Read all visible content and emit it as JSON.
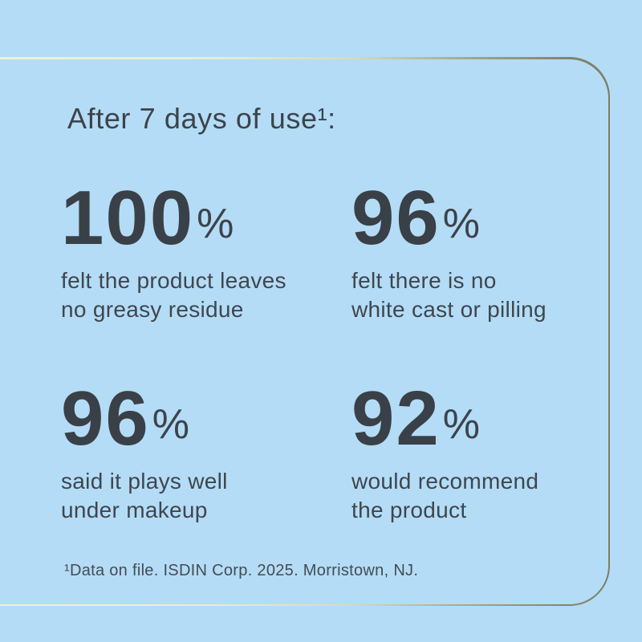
{
  "page": {
    "background_color": "#b4dcf6",
    "text_color": "#3d434b",
    "stat_number_color": "#3a4047",
    "border_gradient_left": "#f0f2dc",
    "border_gradient_right": "#7d7d66"
  },
  "heading": "After 7 days of use¹:",
  "stats": [
    {
      "value": "100",
      "percent_sign": "%",
      "caption": "felt the product leaves\nno greasy residue"
    },
    {
      "value": "96",
      "percent_sign": "%",
      "caption": "felt there is no\nwhite cast or pilling"
    },
    {
      "value": "96",
      "percent_sign": "%",
      "caption": "said it plays well\nunder makeup"
    },
    {
      "value": "92",
      "percent_sign": "%",
      "caption": "would recommend\nthe product"
    }
  ],
  "footnote": "¹Data on file. ISDIN Corp. 2025. Morristown, NJ.",
  "chart_data": {
    "type": "table",
    "title": "After 7 days of use¹:",
    "categories": [
      "felt the product leaves no greasy residue",
      "felt there is no white cast or pilling",
      "said it plays well under makeup",
      "would recommend the product"
    ],
    "values": [
      100,
      96,
      96,
      92
    ],
    "unit": "%",
    "source_note": "¹Data on file. ISDIN Corp. 2025. Morristown, NJ."
  }
}
